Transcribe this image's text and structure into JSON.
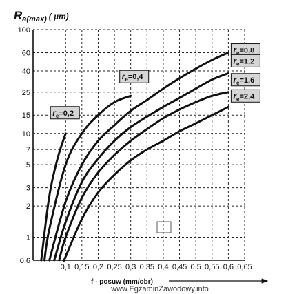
{
  "chart_data": {
    "type": "line",
    "ylabel": {
      "main": "R",
      "sub": "a(max)",
      "unit": "( µm)"
    },
    "xlabel": "f - posuw (mm/obr)",
    "yscale": "log",
    "ylim": [
      0.6,
      100
    ],
    "xlim": [
      0,
      0.65
    ],
    "x_ticks": [
      0.1,
      0.15,
      0.2,
      0.25,
      0.3,
      0.35,
      0.4,
      0.45,
      0.5,
      0.55,
      0.6,
      0.65
    ],
    "x_tick_labels": [
      "0,1",
      "0,15",
      "0,2",
      "0,25",
      "0,3",
      "0,35",
      "0,4",
      "0,45",
      "0,5",
      "0,55",
      "0,6",
      "0,65"
    ],
    "y_ticks": [
      0.6,
      1,
      2,
      3,
      5,
      7,
      10,
      15,
      25,
      40,
      60,
      100
    ],
    "y_tick_labels": [
      "0,6",
      "1",
      "2",
      "3",
      "5",
      "7",
      "10",
      "15",
      "25",
      "40",
      "60",
      "100"
    ],
    "grid": true,
    "series": [
      {
        "name": "re=0,2",
        "label_main": "r",
        "label_sub": "e",
        "label_val": "=0,2",
        "x": [
          0.025,
          0.05,
          0.075,
          0.1
        ],
        "y": [
          0.6,
          2.5,
          5.7,
          10
        ]
      },
      {
        "name": "re=0,4",
        "label_main": "r",
        "label_sub": "e",
        "label_val": "=0,4",
        "x": [
          0.035,
          0.05,
          0.1,
          0.15,
          0.2,
          0.25,
          0.3
        ],
        "y": [
          0.6,
          1.2,
          5,
          10,
          15,
          20,
          23
        ]
      },
      {
        "name": "re=0,8",
        "label_main": "r",
        "label_sub": "e",
        "label_val": "=0,8",
        "x": [
          0.05,
          0.1,
          0.15,
          0.2,
          0.25,
          0.3,
          0.35,
          0.4,
          0.45,
          0.5,
          0.55,
          0.6
        ],
        "y": [
          0.6,
          2.2,
          5,
          8.5,
          12,
          16.5,
          21,
          27,
          34,
          42,
          51,
          60
        ]
      },
      {
        "name": "re=1,2",
        "label_main": "r",
        "label_sub": "e",
        "label_val": "=1,2",
        "x": [
          0.065,
          0.1,
          0.15,
          0.2,
          0.25,
          0.3,
          0.35,
          0.4,
          0.45,
          0.5,
          0.55,
          0.6
        ],
        "y": [
          0.6,
          1.4,
          3.4,
          5.7,
          8.5,
          11.5,
          14.5,
          18,
          22,
          27,
          33,
          38
        ]
      },
      {
        "name": "re=1,6",
        "label_main": "r",
        "label_sub": "e",
        "label_val": "=1,6",
        "x": [
          0.08,
          0.1,
          0.15,
          0.2,
          0.25,
          0.3,
          0.35,
          0.4,
          0.45,
          0.5,
          0.55,
          0.6
        ],
        "y": [
          0.6,
          1,
          2.4,
          4.2,
          6.2,
          8.5,
          11,
          14,
          17,
          20,
          23,
          25
        ]
      },
      {
        "name": "re=2,4",
        "label_main": "r",
        "label_sub": "e",
        "label_val": "=2,4",
        "x": [
          0.095,
          0.1,
          0.15,
          0.2,
          0.25,
          0.3,
          0.35,
          0.4,
          0.45,
          0.5,
          0.55,
          0.6
        ],
        "y": [
          0.6,
          0.65,
          1.5,
          2.7,
          4,
          5.5,
          7,
          8.5,
          10.5,
          12.5,
          15,
          18
        ]
      }
    ],
    "watermark": "www.EgzaminZawodowy.info"
  }
}
